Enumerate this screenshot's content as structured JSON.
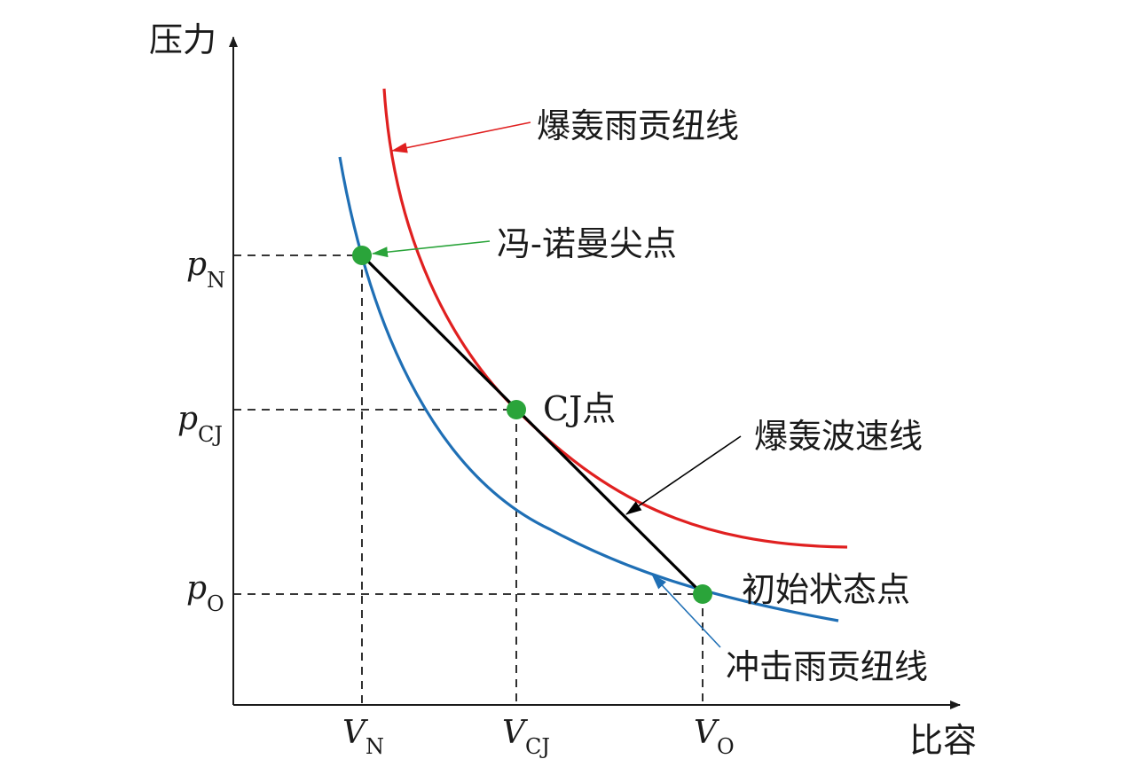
{
  "axes": {
    "y_title": "压力",
    "x_title": "比容"
  },
  "ticks": {
    "y": [
      {
        "main": "p",
        "sub": "N"
      },
      {
        "main": "p",
        "sub": "CJ"
      },
      {
        "main": "p",
        "sub": "O"
      }
    ],
    "x": [
      {
        "main": "V",
        "sub": "N"
      },
      {
        "main": "V",
        "sub": "CJ"
      },
      {
        "main": "V",
        "sub": "O"
      }
    ]
  },
  "labels": {
    "detonation_hugoniot": "爆轰雨贡纽线",
    "von_neumann_spike": "冯-诺曼尖点",
    "cj_point": "CJ点",
    "rayleigh_line": "爆轰波速线",
    "initial_state": "初始状态点",
    "shock_hugoniot": "冲击雨贡纽线"
  },
  "colors": {
    "detonation_curve": "#e02020",
    "shock_curve": "#1f6fb5",
    "rayleigh_line": "#000000",
    "points": "#2aa43a",
    "von_neumann_arrow": "#2aa43a",
    "axis": "#1a1a1a",
    "guide_lines": "#1a1a1a"
  }
}
